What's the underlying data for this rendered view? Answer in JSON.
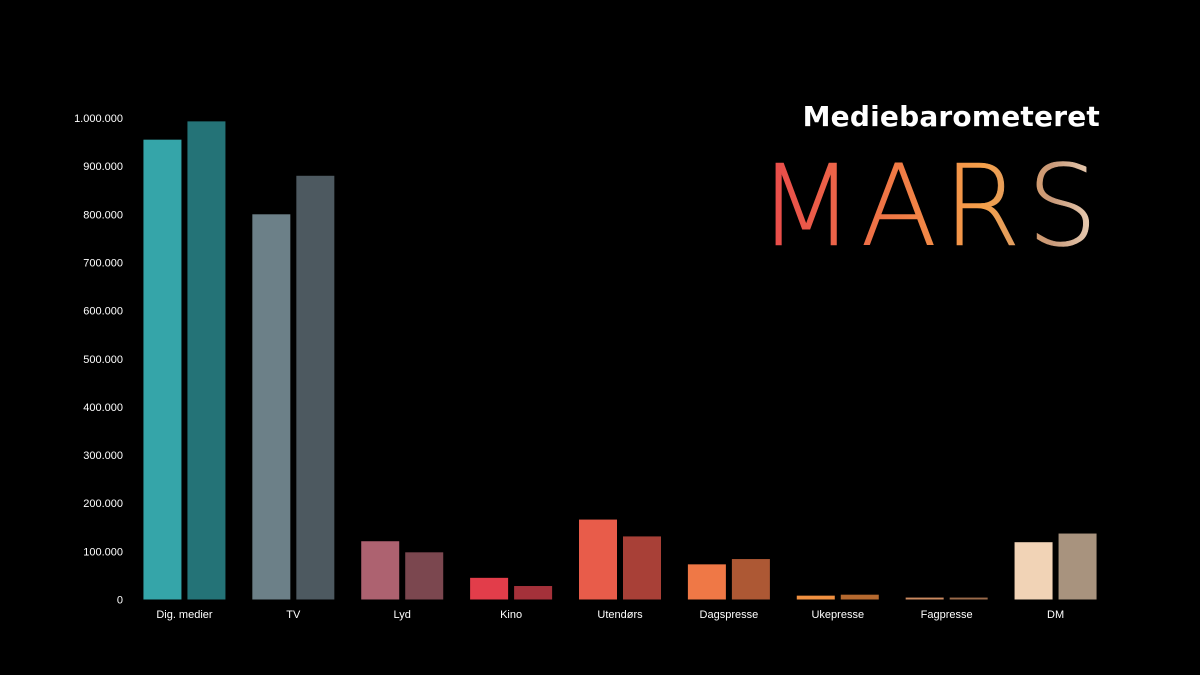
{
  "header": {
    "subtitle": "Mediebarometeret",
    "title": "MARS"
  },
  "chart_data": {
    "type": "bar",
    "title": "",
    "xlabel": "",
    "ylabel": "",
    "ylim": [
      0,
      1000000
    ],
    "yticks": [
      {
        "value": 0,
        "label": "0"
      },
      {
        "value": 100000,
        "label": "100.000"
      },
      {
        "value": 200000,
        "label": "200.000"
      },
      {
        "value": 300000,
        "label": "300.000"
      },
      {
        "value": 400000,
        "label": "400.000"
      },
      {
        "value": 500000,
        "label": "500.000"
      },
      {
        "value": 600000,
        "label": "600.000"
      },
      {
        "value": 700000,
        "label": "700.000"
      },
      {
        "value": 800000,
        "label": "800.000"
      },
      {
        "value": 900000,
        "label": "900.000"
      },
      {
        "value": 1000000,
        "label": "1.000.000"
      }
    ],
    "grid": false,
    "legend": "none",
    "categories": [
      "Dig. medier",
      "TV",
      "Lyd",
      "Kino",
      "Utendørs",
      "Dagspresse",
      "Ukepresse",
      "Fagpresse",
      "DM"
    ],
    "series": [
      {
        "values": [
          955000,
          800000,
          121000,
          45000,
          166000,
          73000,
          8000,
          4000,
          119000
        ],
        "colors": [
          "#35a5a9",
          "#6c8088",
          "#ad6270",
          "#e23d4a",
          "#e85c4a",
          "#ef7846",
          "#f09040",
          "#cc8a60",
          "#f1d3b6"
        ]
      },
      {
        "values": [
          993000,
          880000,
          98000,
          28000,
          131000,
          84000,
          10000,
          4000,
          137000
        ],
        "colors": [
          "#247377",
          "#4d5960",
          "#7b474f",
          "#a4313a",
          "#a84037",
          "#ad5834",
          "#b5692f",
          "#9a6a4a",
          "#a8937e"
        ]
      }
    ]
  }
}
